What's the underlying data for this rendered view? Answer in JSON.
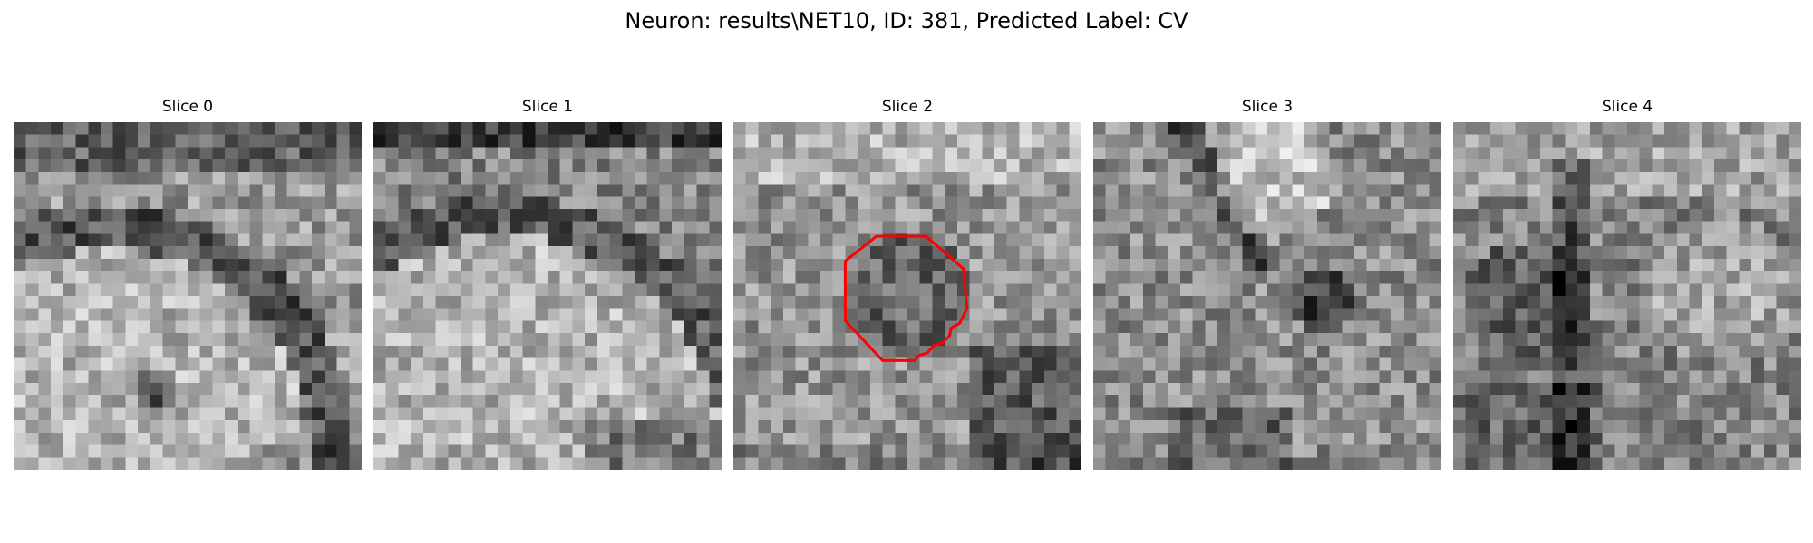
{
  "figure": {
    "title": "Neuron: results\\NET10, ID: 381, Predicted Label: CV"
  },
  "panels": [
    {
      "title": "Slice 0"
    },
    {
      "title": "Slice 1"
    },
    {
      "title": "Slice 2"
    },
    {
      "title": "Slice 3"
    },
    {
      "title": "Slice 4"
    }
  ],
  "colors": {
    "contour": "#ff0000",
    "background": "#ffffff"
  }
}
